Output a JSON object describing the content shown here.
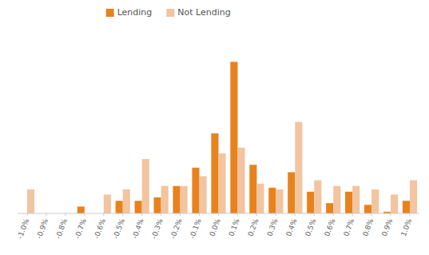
{
  "chart_data": {
    "type": "bar",
    "categories": [
      "-1.0%",
      "-0.9%",
      "-0.8%",
      "-0.7%",
      "-0.6%",
      "-0.5%",
      "-0.4%",
      "-0.3%",
      "-0.2%",
      "-0.1%",
      "0.0%",
      "0.1%",
      "0.2%",
      "0.3%",
      "0.4%",
      "0.5%",
      "0.6%",
      "0.7%",
      "0.8%",
      "0.9%",
      "1.0%"
    ],
    "series": [
      {
        "name": "Lending",
        "color": "#E8821C",
        "values": [
          0.0,
          0.0,
          0.0,
          1.2,
          0.0,
          2.2,
          2.2,
          2.8,
          4.8,
          8.0,
          14.0,
          26.5,
          8.5,
          4.5,
          7.2,
          3.8,
          1.8,
          3.8,
          1.5,
          0.3,
          2.2
        ]
      },
      {
        "name": "Not Lending",
        "color": "#F2C4A0",
        "values": [
          4.2,
          0.0,
          0.0,
          0.0,
          3.3,
          4.2,
          9.5,
          4.8,
          4.8,
          6.5,
          10.5,
          11.5,
          5.2,
          4.2,
          16.0,
          5.8,
          4.8,
          4.8,
          4.2,
          3.3,
          5.8
        ]
      }
    ],
    "ylim": [
      0,
      32
    ],
    "grid": false,
    "legend": "top",
    "tick_labels": "x"
  }
}
